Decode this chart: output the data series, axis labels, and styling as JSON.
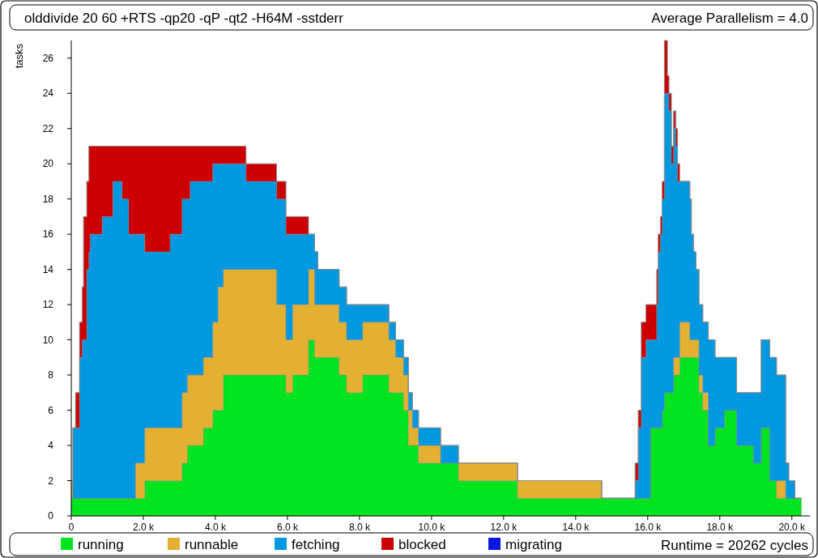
{
  "chart_data": {
    "type": "area",
    "stacked": true,
    "title": "olddivide 20 60 +RTS -qp20 -qP -qt2 -H64M -sstderr",
    "ylabel": "tasks",
    "annotations": [
      "Average Parallelism = 4.0",
      "Runtime = 20262 cycles"
    ],
    "x": [
      0,
      44,
      44,
      118,
      118,
      229,
      229,
      303,
      303,
      340,
      340,
      429,
      429,
      488,
      488,
      525,
      525,
      858,
      858,
      1153,
      1153,
      1412,
      1412,
      1596,
      1596,
      1781,
      1781,
      2040,
      2040,
      2594,
      2594,
      2742,
      2742,
      3075,
      3075,
      3222,
      3222,
      3297,
      3297,
      3666,
      3666,
      3925,
      3925,
      4073,
      4073,
      4220,
      4220,
      4849,
      4849,
      5698,
      5698,
      5958,
      5958,
      6142,
      6142,
      6585,
      6585,
      6755,
      6755,
      6844,
      6844,
      7435,
      7435,
      7642,
      7642,
      8086,
      8086,
      8817,
      8817,
      9002,
      9002,
      9224,
      9224,
      9357,
      9357,
      9468,
      9468,
      9638,
      9638,
      10251,
      10251,
      10747,
      10747,
      12388,
      12388,
      14723,
      14723,
      15650,
      15650,
      15736,
      15736,
      15820,
      15820,
      15949,
      15949,
      16077,
      16077,
      16248,
      16248,
      16290,
      16290,
      16350,
      16350,
      16400,
      16400,
      16461,
      16461,
      16546,
      16546,
      16589,
      16589,
      16656,
      16656,
      16716,
      16716,
      16775,
      16775,
      16826,
      16826,
      16886,
      16886,
      17168,
      17168,
      17210,
      17210,
      17270,
      17270,
      17339,
      17339,
      17423,
      17423,
      17527,
      17527,
      17681,
      17681,
      17868,
      17868,
      18124,
      18124,
      18466,
      18466,
      18934,
      18934,
      19146,
      19146,
      19386,
      19386,
      19574,
      19574,
      19830,
      19830,
      19916,
      19916,
      20084,
      20084,
      20262,
      20262
    ],
    "series": [
      {
        "name": "running",
        "color": "#00e31f",
        "values": [
          1,
          1,
          1,
          1,
          1,
          1,
          1,
          1,
          1,
          1,
          1,
          1,
          1,
          1,
          1,
          1,
          1,
          1,
          1,
          1,
          1,
          1,
          1,
          1,
          1,
          1,
          1,
          1,
          2,
          2,
          2,
          2,
          2,
          2,
          3,
          3,
          4,
          4,
          4,
          4,
          5,
          5,
          6,
          6,
          6,
          6,
          8,
          8,
          8,
          8,
          8,
          8,
          7,
          7,
          8,
          8,
          10,
          10,
          9,
          9,
          9,
          9,
          8,
          8,
          7,
          7,
          8,
          8,
          7,
          7,
          7,
          7,
          6,
          6,
          4,
          4,
          4,
          4,
          3,
          3,
          3,
          3,
          2,
          2,
          1,
          1,
          1,
          1,
          1,
          1,
          1,
          1,
          1,
          1,
          1,
          1,
          5,
          5,
          5,
          5,
          5,
          5,
          5,
          5,
          6,
          6,
          7,
          7,
          7,
          7,
          7,
          7,
          7,
          7,
          8,
          8,
          8,
          8,
          8,
          8,
          9,
          9,
          9,
          9,
          9,
          9,
          9,
          9,
          9,
          9,
          7,
          7,
          6,
          6,
          4,
          4,
          5,
          5,
          6,
          6,
          4,
          4,
          3,
          3,
          5,
          5,
          2,
          2,
          1,
          1,
          1,
          1,
          1,
          1,
          1,
          1,
          1
        ]
      },
      {
        "name": "runnable",
        "color": "#e3b032",
        "values": [
          1,
          1,
          0,
          0,
          0,
          0,
          0,
          0,
          0,
          0,
          0,
          0,
          0,
          0,
          0,
          0,
          0,
          0,
          0,
          0,
          0,
          0,
          0,
          0,
          0,
          0,
          2,
          2,
          3,
          3,
          3,
          3,
          3,
          3,
          4,
          4,
          4,
          4,
          4,
          4,
          4,
          4,
          5,
          5,
          7,
          7,
          6,
          6,
          6,
          6,
          4,
          4,
          3,
          3,
          4,
          4,
          4,
          4,
          3,
          3,
          3,
          3,
          3,
          3,
          3,
          3,
          3,
          3,
          3,
          3,
          2,
          2,
          2,
          2,
          2,
          2,
          1,
          1,
          1,
          1,
          0,
          0,
          1,
          1,
          1,
          1,
          0,
          0,
          0,
          0,
          0,
          0,
          0,
          0,
          0,
          0,
          0,
          0,
          0,
          0,
          0,
          0,
          0,
          0,
          0,
          0,
          0,
          0,
          0,
          0,
          0,
          0,
          0,
          0,
          1,
          1,
          1,
          1,
          1,
          1,
          2,
          2,
          1,
          1,
          1,
          1,
          1,
          1,
          1,
          1,
          1,
          1,
          1,
          1,
          0,
          0,
          0,
          0,
          0,
          0,
          0,
          0,
          0,
          0,
          0,
          0,
          0,
          0,
          1,
          1,
          0,
          0,
          0,
          0,
          0,
          0,
          0
        ]
      },
      {
        "name": "fetching",
        "color": "#0098e0",
        "values": [
          0,
          0,
          4,
          4,
          4,
          4,
          8,
          8,
          9,
          9,
          9,
          9,
          13,
          13,
          14,
          14,
          15,
          15,
          16,
          16,
          18,
          18,
          17,
          17,
          15,
          15,
          13,
          13,
          10,
          10,
          10,
          10,
          11,
          11,
          11,
          11,
          10,
          10,
          11,
          11,
          10,
          10,
          9,
          9,
          7,
          7,
          6,
          6,
          5,
          5,
          6,
          6,
          6,
          6,
          4,
          4,
          2,
          2,
          3,
          3,
          2,
          2,
          2,
          2,
          2,
          2,
          1,
          1,
          1,
          1,
          1,
          1,
          1,
          1,
          1,
          1,
          1,
          1,
          1,
          1,
          1,
          1,
          0,
          0,
          0,
          0,
          0,
          0,
          1,
          1,
          4,
          4,
          8,
          8,
          9,
          9,
          5,
          5,
          7,
          7,
          10,
          10,
          11,
          11,
          12,
          12,
          17,
          17,
          17,
          17,
          16,
          16,
          13,
          13,
          13,
          13,
          12,
          12,
          10,
          10,
          8,
          8,
          8,
          8,
          6,
          6,
          5,
          5,
          4,
          4,
          4,
          4,
          4,
          4,
          6,
          6,
          4,
          4,
          3,
          3,
          3,
          3,
          4,
          4,
          5,
          5,
          7,
          7,
          6,
          6,
          2,
          2,
          1,
          1,
          0,
          0,
          0
        ]
      },
      {
        "name": "blocked",
        "color": "#cc0000",
        "values": [
          0,
          0,
          0,
          0,
          2,
          2,
          2,
          2,
          3,
          3,
          7,
          7,
          5,
          5,
          6,
          6,
          5,
          5,
          4,
          4,
          2,
          2,
          3,
          3,
          5,
          5,
          5,
          5,
          6,
          6,
          6,
          6,
          5,
          5,
          3,
          3,
          3,
          3,
          2,
          2,
          2,
          2,
          1,
          1,
          1,
          1,
          1,
          1,
          1,
          1,
          1,
          1,
          1,
          1,
          1,
          1,
          0,
          0,
          0,
          0,
          0,
          0,
          0,
          0,
          0,
          0,
          0,
          0,
          0,
          0,
          0,
          0,
          0,
          0,
          0,
          0,
          0,
          0,
          0,
          0,
          0,
          0,
          0,
          0,
          0,
          0,
          0,
          0,
          1,
          1,
          1,
          1,
          2,
          2,
          2,
          2,
          2,
          2,
          2,
          2,
          1,
          1,
          1,
          1,
          1,
          1,
          3,
          3,
          1,
          1,
          1,
          1,
          1,
          1,
          1,
          1,
          1,
          1,
          1,
          1,
          0,
          0,
          0,
          0,
          0,
          0,
          0,
          0,
          0,
          0,
          0,
          0,
          0,
          0,
          0,
          0,
          0,
          0,
          0,
          0,
          0,
          0,
          0,
          0,
          0,
          0,
          0,
          0,
          0,
          0,
          0,
          0,
          0,
          0,
          0,
          0,
          0
        ]
      },
      {
        "name": "migrating",
        "color": "#0a17e0",
        "values": [
          null,
          null,
          null,
          null,
          null,
          null,
          null,
          null,
          null,
          null,
          null,
          null,
          null,
          null,
          null,
          null,
          null,
          null,
          null,
          null,
          null,
          null,
          null,
          null,
          null,
          null,
          null,
          null,
          null,
          null,
          null,
          null,
          null,
          null,
          null,
          null,
          null,
          null,
          null,
          null,
          null,
          null,
          null,
          null,
          null,
          null,
          null,
          null,
          null,
          null,
          null,
          null,
          null,
          null,
          null,
          null,
          null,
          null,
          null,
          null,
          null,
          null,
          null,
          null,
          null,
          null,
          null,
          null,
          null,
          null,
          null,
          null,
          null,
          null,
          null,
          null,
          null,
          null,
          null,
          null,
          null,
          null,
          null,
          null,
          null,
          null,
          null,
          null,
          null,
          null,
          null,
          null,
          null,
          null,
          null,
          null,
          null,
          null,
          null,
          null,
          null,
          null,
          null,
          null,
          null,
          null,
          null,
          null,
          null,
          null,
          null,
          null,
          null,
          null,
          null,
          null,
          null,
          null,
          null,
          null,
          null,
          null,
          null,
          null,
          null,
          null,
          null,
          null,
          null,
          null,
          null,
          null,
          null,
          null,
          null,
          null,
          null,
          null,
          null,
          null,
          null,
          null,
          null,
          null,
          null,
          null,
          null,
          null,
          null,
          null,
          null,
          null,
          null,
          null,
          null,
          null,
          null
        ]
      }
    ],
    "xlim": [
      0,
      20500
    ],
    "ylim": [
      0,
      27
    ],
    "xticks": [
      0,
      {
        "value": 2000,
        "label": "2.0 k"
      },
      {
        "value": 4000,
        "label": "4.0 k"
      },
      {
        "value": 6000,
        "label": "6.0 k"
      },
      {
        "value": 8000,
        "label": "8.0 k"
      },
      {
        "value": 10000,
        "label": "10.0 k"
      },
      {
        "value": 12000,
        "label": "12.0 k"
      },
      {
        "value": 14000,
        "label": "14.0 k"
      },
      {
        "value": 16000,
        "label": "16.0 k"
      },
      {
        "value": 18000,
        "label": "18.0 k"
      },
      {
        "value": 20000,
        "label": "20.0 k"
      }
    ],
    "yticks": [
      0,
      2,
      4,
      6,
      8,
      10,
      12,
      14,
      16,
      18,
      20,
      22,
      24,
      26
    ],
    "grid": false,
    "legend": "bottom"
  }
}
